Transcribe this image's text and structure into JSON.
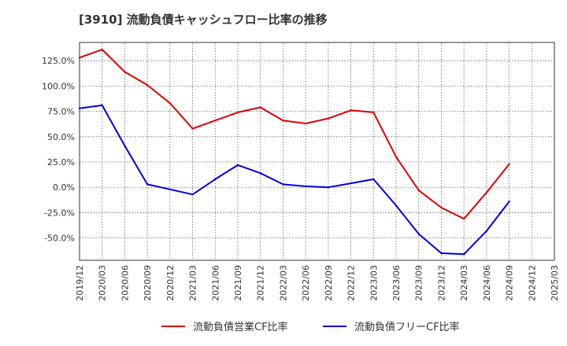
{
  "chart_data": {
    "type": "line",
    "title": "[3910]  流動負債キャッシュフロー比率の推移",
    "xlabel": "",
    "ylabel": "",
    "ylim": [
      -72,
      143
    ],
    "grid": true,
    "legend_position": "bottom",
    "y_ticks": [
      125,
      100,
      75,
      50,
      25,
      0,
      -25,
      -50
    ],
    "y_tick_labels": [
      "125.0%",
      "100.0%",
      "75.0%",
      "50.0%",
      "25.0%",
      "0.0%",
      "-25.0%",
      "-50.0%"
    ],
    "x": [
      "2019/12",
      "2020/03",
      "2020/06",
      "2020/09",
      "2020/12",
      "2021/03",
      "2021/06",
      "2021/09",
      "2021/12",
      "2022/03",
      "2022/06",
      "2022/09",
      "2022/12",
      "2023/03",
      "2023/06",
      "2023/09",
      "2023/12",
      "2024/03",
      "2024/06",
      "2024/09",
      "2024/12",
      "2025/03"
    ],
    "series": [
      {
        "name": "流動負債営業CF比率",
        "color": "#dd0000",
        "values": [
          128,
          136,
          114,
          101,
          83,
          58,
          66,
          74,
          79,
          66,
          63,
          68,
          76,
          74,
          30,
          -3,
          -20,
          -31,
          -5,
          23,
          null,
          null
        ]
      },
      {
        "name": "流動負債フリーCF比率",
        "color": "#0000dd",
        "values": [
          78,
          81,
          41,
          3,
          -2,
          -7,
          8,
          22,
          14,
          3,
          1,
          0,
          4,
          8,
          -18,
          -46,
          -65,
          -66,
          -43,
          -14,
          null,
          null
        ]
      }
    ]
  }
}
